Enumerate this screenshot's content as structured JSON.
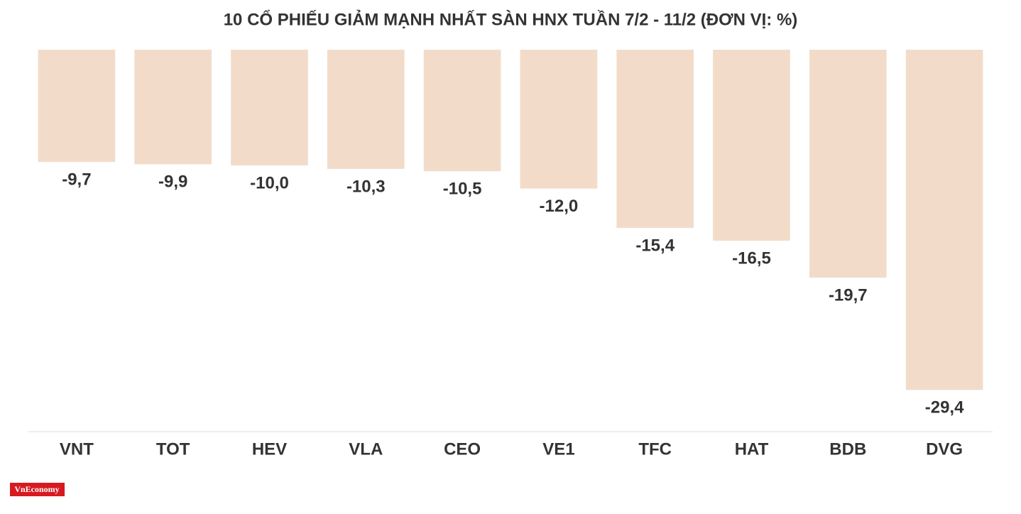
{
  "chart_data": {
    "type": "bar",
    "title": "10 CỔ PHIẾU GIẢM MẠNH NHẤT SÀN HNX TUẦN 7/2 - 11/2 (ĐƠN VỊ: %)",
    "categories": [
      "VNT",
      "TOT",
      "HEV",
      "VLA",
      "CEO",
      "VE1",
      "TFC",
      "HAT",
      "BDB",
      "DVG"
    ],
    "values": [
      -9.7,
      -9.9,
      -10.0,
      -10.3,
      -10.5,
      -12.0,
      -15.4,
      -16.5,
      -19.7,
      -29.4
    ],
    "value_labels": [
      "-9,7",
      "-9,9",
      "-10,0",
      "-10,3",
      "-10,5",
      "-12,0",
      "-15,4",
      "-16,5",
      "-19,7",
      "-29,4"
    ],
    "color": "#f2dcc9",
    "ylim": [
      -33,
      0
    ],
    "logo": "VnEconomy"
  }
}
